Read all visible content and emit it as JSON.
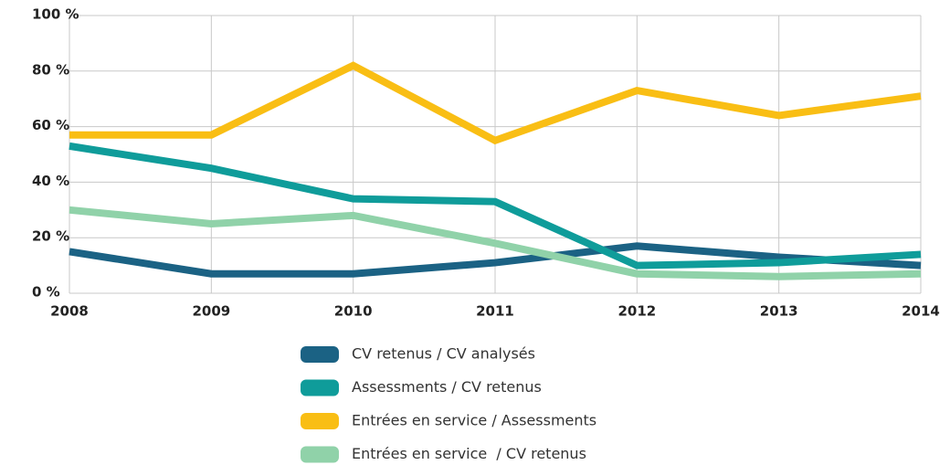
{
  "chart_data": {
    "type": "line",
    "x": [
      2008,
      2009,
      2010,
      2011,
      2012,
      2013,
      2014
    ],
    "xlim": [
      2008,
      2014
    ],
    "xticks": [
      2008,
      2009,
      2010,
      2011,
      2012,
      2013,
      2014
    ],
    "ylim": [
      0,
      100
    ],
    "yticks": [
      {
        "value": 0,
        "label": "0 %"
      },
      {
        "value": 20,
        "label": "20 %"
      },
      {
        "value": 40,
        "label": "40 %"
      },
      {
        "value": 60,
        "label": "60 %"
      },
      {
        "value": 80,
        "label": "80 %"
      },
      {
        "value": 100,
        "label": "100 %"
      }
    ],
    "grid": true,
    "series": [
      {
        "name": "CV retenus / CV analysés",
        "color": "#1b6284",
        "values": [
          15,
          7,
          7,
          11,
          17,
          13,
          10
        ]
      },
      {
        "name": "Assessments / CV retenus",
        "color": "#0f9c9a",
        "values": [
          53,
          45,
          34,
          33,
          10,
          11,
          14
        ]
      },
      {
        "name": "Entrées en service / Assessments",
        "color": "#f9be14",
        "values": [
          57,
          57,
          82,
          55,
          73,
          64,
          71
        ]
      },
      {
        "name": "Entrées en service  / CV retenus",
        "color": "#90d2a9",
        "values": [
          30,
          25,
          28,
          18,
          7,
          6,
          7
        ]
      }
    ]
  }
}
